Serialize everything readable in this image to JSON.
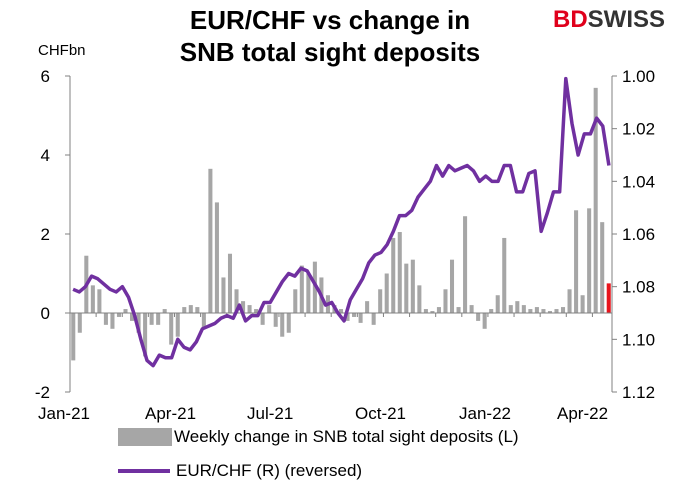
{
  "header": {
    "title_line1": "EUR/CHF vs change in",
    "title_line2": "SNB total sight deposits",
    "logo_part1": "BD",
    "logo_part2": "SWISS"
  },
  "colors": {
    "bars": "#a6a6a6",
    "highlight_bar": "#e8141c",
    "line": "#7030a0",
    "axis": "#808080"
  },
  "chart_data": {
    "type": "bar+line",
    "left_unit": "CHFbn",
    "x_labels": [
      "Jan-21",
      "Apr-21",
      "Jul-21",
      "Oct-21",
      "Jan-22",
      "Apr-22"
    ],
    "left_axis": {
      "min": -2,
      "max": 6,
      "ticks": [
        -2,
        0,
        2,
        4,
        6
      ]
    },
    "right_axis": {
      "min": 1.0,
      "max": 1.12,
      "reversed": true,
      "ticks": [
        "1.00",
        "1.02",
        "1.04",
        "1.06",
        "1.08",
        "1.10",
        "1.12"
      ]
    },
    "series": [
      {
        "name": "Weekly change in SNB total sight deposits (L)",
        "type": "bar",
        "values": [
          -1.2,
          -0.5,
          1.45,
          0.7,
          0.6,
          -0.3,
          -0.4,
          -0.1,
          0.1,
          -0.2,
          -0.5,
          -1.1,
          -0.3,
          -0.3,
          0.1,
          -0.8,
          -0.6,
          0.15,
          0.2,
          0.15,
          -0.4,
          3.65,
          2.8,
          0.9,
          1.5,
          0.6,
          0.3,
          0.2,
          0.1,
          -0.3,
          0.2,
          -0.35,
          -0.6,
          -0.5,
          0.6,
          1.2,
          1.0,
          1.3,
          0.9,
          0.45,
          0.2,
          0.1,
          -0.2,
          -0.1,
          -0.25,
          0.3,
          -0.3,
          0.6,
          1.0,
          1.9,
          2.05,
          1.25,
          1.35,
          0.7,
          0.1,
          0.05,
          0.15,
          0.6,
          1.35,
          0.15,
          2.45,
          0.2,
          -0.2,
          -0.4,
          0.1,
          0.45,
          1.9,
          0.2,
          0.3,
          0.2,
          0.1,
          0.15,
          0.1,
          0.05,
          0.1,
          0.15,
          0.6,
          2.6,
          0.45,
          2.65,
          5.7,
          2.3,
          0.75
        ],
        "highlight_last": true
      },
      {
        "name": "EUR/CHF (R) (reversed)",
        "type": "line",
        "values": [
          1.081,
          1.082,
          1.08,
          1.076,
          1.077,
          1.079,
          1.081,
          1.082,
          1.08,
          1.084,
          1.091,
          1.1,
          1.108,
          1.11,
          1.106,
          1.107,
          1.107,
          1.1,
          1.103,
          1.104,
          1.101,
          1.096,
          1.095,
          1.094,
          1.092,
          1.091,
          1.092,
          1.087,
          1.093,
          1.091,
          1.091,
          1.086,
          1.086,
          1.082,
          1.078,
          1.075,
          1.076,
          1.073,
          1.074,
          1.078,
          1.082,
          1.087,
          1.086,
          1.09,
          1.093,
          1.085,
          1.081,
          1.077,
          1.071,
          1.068,
          1.067,
          1.064,
          1.059,
          1.053,
          1.053,
          1.051,
          1.046,
          1.043,
          1.04,
          1.034,
          1.038,
          1.034,
          1.036,
          1.035,
          1.034,
          1.036,
          1.04,
          1.038,
          1.04,
          1.04,
          1.034,
          1.034,
          1.044,
          1.044,
          1.037,
          1.036,
          1.059,
          1.052,
          1.044,
          1.044,
          1.001,
          1.018,
          1.03,
          1.022,
          1.022,
          1.016,
          1.019,
          1.034
        ]
      }
    ]
  }
}
